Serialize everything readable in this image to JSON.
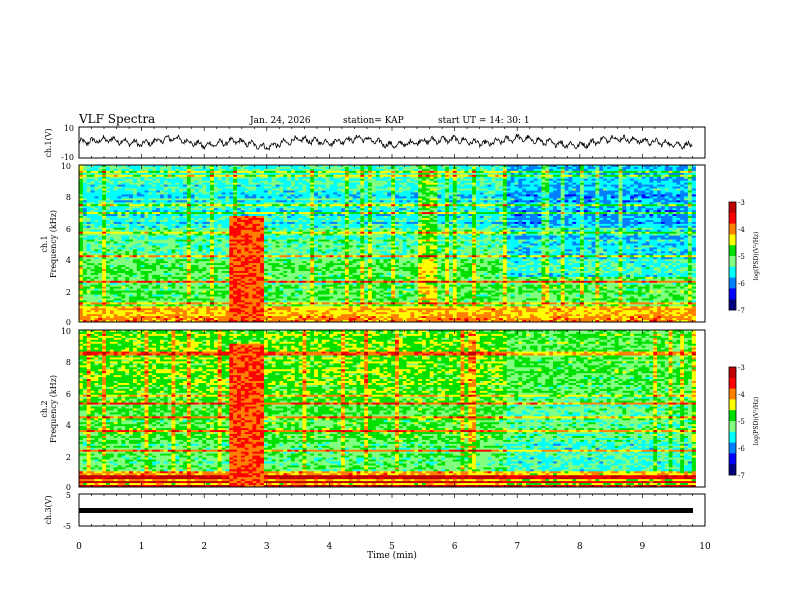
{
  "header": {
    "title": "VLF Spectra",
    "date": "Jan. 24, 2026",
    "station": "station= KAP",
    "start_ut": "start  UT  =   14: 30: 1"
  },
  "colors": {
    "colormap": [
      "#000080",
      "#0000ff",
      "#0080ff",
      "#00ffff",
      "#80ff80",
      "#00e000",
      "#ffff00",
      "#ff8000",
      "#ff0000",
      "#c00000"
    ],
    "trace": "#000000"
  },
  "chart_data": [
    {
      "type": "line",
      "title": "ch.1 waveform",
      "ylabel": "ch.1(V)",
      "ylim": [
        -10,
        10
      ],
      "yticks": [
        "10",
        "-10"
      ],
      "x_range_min": [
        0,
        9.8
      ],
      "description_values": "oscillating voltage trace, roughly -5 to 5 V",
      "x": [
        0,
        0.5,
        1,
        1.5,
        2,
        2.5,
        3,
        3.5,
        4,
        4.5,
        5,
        5.5,
        6,
        6.5,
        7,
        7.5,
        8,
        8.5,
        9,
        9.5,
        9.8
      ],
      "y": [
        0,
        2,
        -1,
        3,
        -2,
        1,
        -3,
        2,
        0,
        3,
        -2,
        1,
        2,
        -1,
        3,
        0,
        -2,
        3,
        1,
        -1,
        -2
      ]
    },
    {
      "type": "heatmap",
      "title": "ch.1 spectrogram",
      "ylabel": "Frequency (kHz)",
      "channel_label": "ch.1",
      "ylim": [
        0,
        10
      ],
      "yticks": [
        "0",
        "2",
        "4",
        "6",
        "8",
        "10"
      ],
      "xlim": [
        0,
        10
      ],
      "colorbar": {
        "label": "log(PSD)(V²/Hz)",
        "range": [
          -7,
          -3
        ],
        "ticks": [
          "-3",
          "-4",
          "-5",
          "-6",
          "-7"
        ]
      },
      "burst_interval_min": [
        2.4,
        2.95
      ]
    },
    {
      "type": "heatmap",
      "title": "ch.2 spectrogram",
      "ylabel": "Frequency (kHz)",
      "channel_label": "ch.2",
      "ylim": [
        0,
        10
      ],
      "yticks": [
        "0",
        "2",
        "4",
        "6",
        "8",
        "10"
      ],
      "xlim": [
        0,
        10
      ],
      "colorbar": {
        "label": "log(PSD)(V²/Hz)",
        "range": [
          -7,
          -3
        ],
        "ticks": [
          "-3",
          "-4",
          "-5",
          "-6",
          "-7"
        ]
      },
      "burst_interval_min": [
        2.4,
        2.95
      ]
    },
    {
      "type": "line",
      "title": "ch.3 waveform",
      "ylabel": "ch.3(V)",
      "ylim": [
        -5,
        5
      ],
      "yticks": [
        "5",
        "-5"
      ],
      "x": [
        0,
        9.8
      ],
      "y": [
        0,
        0
      ]
    }
  ],
  "xaxis": {
    "label": "Time  (min)",
    "range": [
      0,
      10
    ],
    "ticks": [
      "0",
      "1",
      "2",
      "3",
      "4",
      "5",
      "6",
      "7",
      "8",
      "9",
      "10"
    ]
  }
}
